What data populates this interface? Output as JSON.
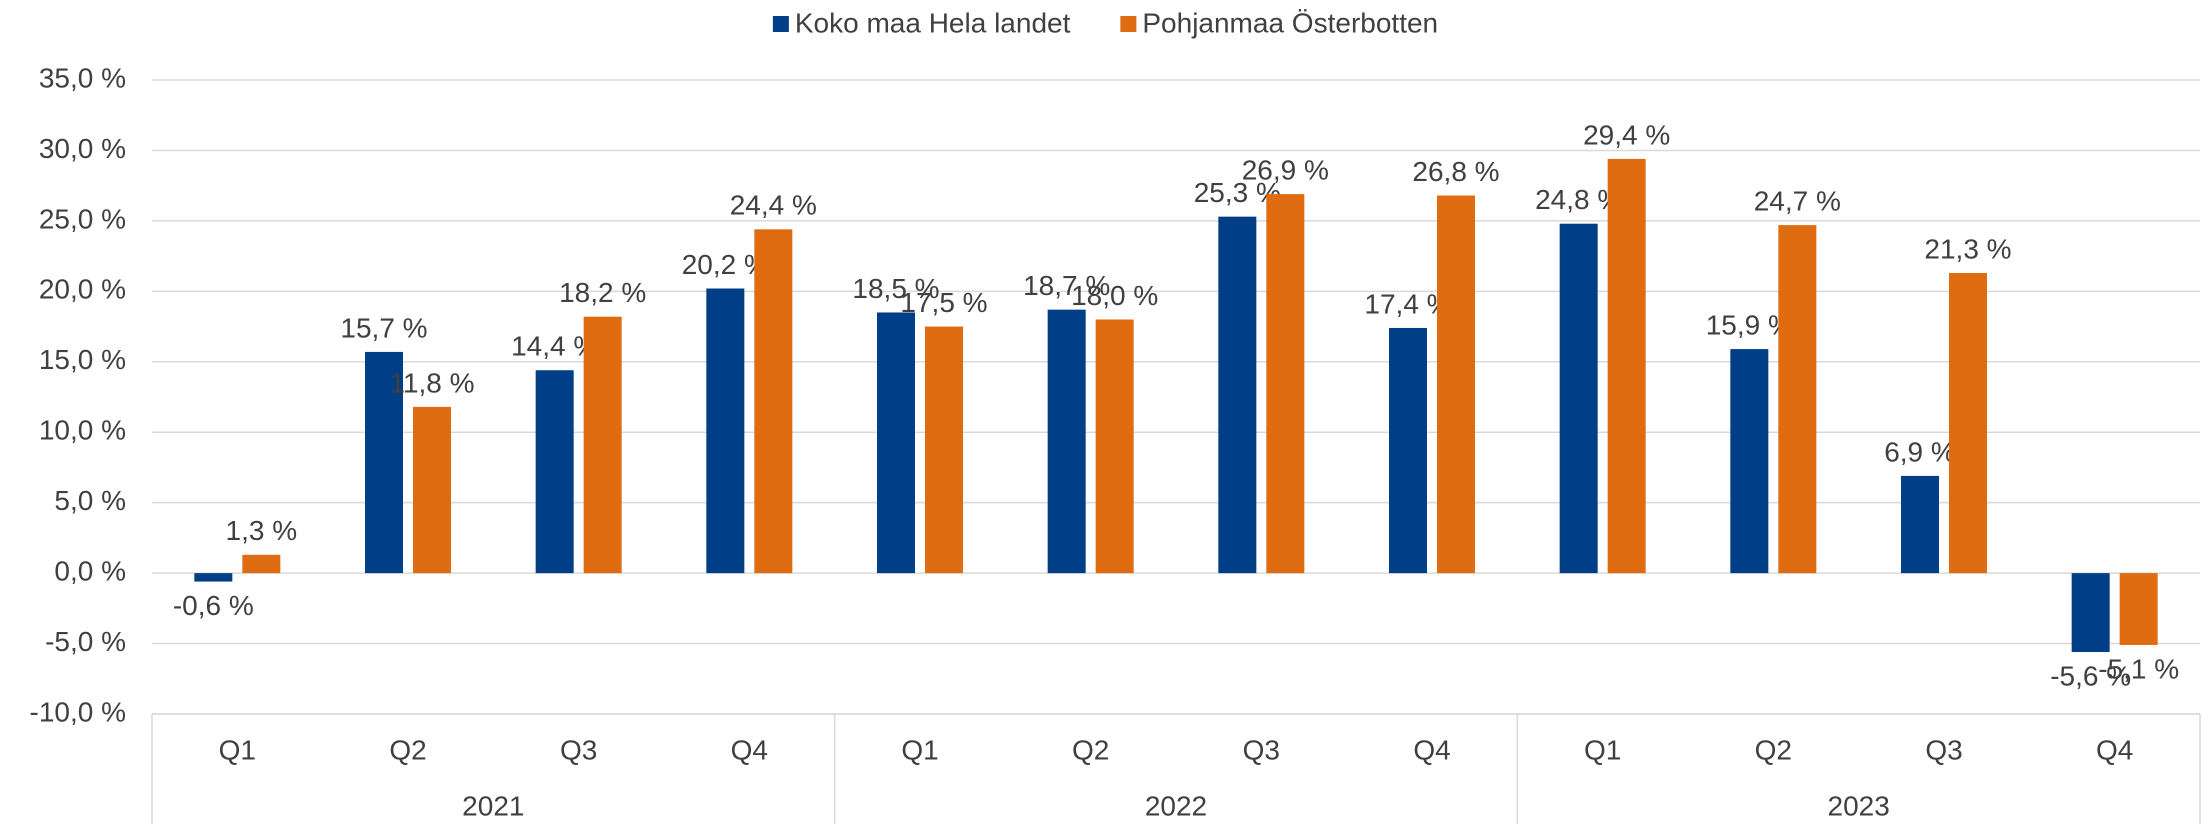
{
  "chart_data": {
    "type": "bar",
    "categories": [
      "Q1",
      "Q2",
      "Q3",
      "Q4",
      "Q1",
      "Q2",
      "Q3",
      "Q4",
      "Q1",
      "Q2",
      "Q3",
      "Q4"
    ],
    "groups": [
      "2021",
      "2022",
      "2023"
    ],
    "series": [
      {
        "name": "Koko maa Hela landet",
        "color": "#003f87",
        "values": [
          -0.6,
          15.7,
          14.4,
          20.2,
          18.5,
          18.7,
          25.3,
          17.4,
          24.8,
          15.9,
          6.9,
          -5.6
        ],
        "value_labels": [
          "-0,6 %",
          "15,7 %",
          "14,4 %",
          "20,2 %",
          "18,5 %",
          "18,7 %",
          "25,3 %",
          "17,4 %",
          "24,8 %",
          "15,9 %",
          "6,9 %",
          "-5,6 %"
        ]
      },
      {
        "name": "Pohjanmaa Österbotten",
        "color": "#e06c12",
        "values": [
          1.3,
          11.8,
          18.2,
          24.4,
          17.5,
          18.0,
          26.9,
          26.8,
          29.4,
          24.7,
          21.3,
          -5.1
        ],
        "value_labels": [
          "1,3 %",
          "11,8 %",
          "18,2 %",
          "24,4 %",
          "17,5 %",
          "18,0 %",
          "26,9 %",
          "26,8 %",
          "29,4 %",
          "24,7 %",
          "21,3 %",
          "-5,1 %"
        ]
      }
    ],
    "ylim": [
      -10,
      35
    ],
    "yticks": [
      {
        "value": -10,
        "label": "-10,0 %"
      },
      {
        "value": -5,
        "label": "-5,0 %"
      },
      {
        "value": 0,
        "label": "0,0 %"
      },
      {
        "value": 5,
        "label": "5,0 %"
      },
      {
        "value": 10,
        "label": "10,0 %"
      },
      {
        "value": 15,
        "label": "15,0 %"
      },
      {
        "value": 20,
        "label": "20,0 %"
      },
      {
        "value": 25,
        "label": "25,0 %"
      },
      {
        "value": 30,
        "label": "30,0 %"
      },
      {
        "value": 35,
        "label": "35,0 %"
      }
    ],
    "grid": true,
    "legend": "top"
  }
}
